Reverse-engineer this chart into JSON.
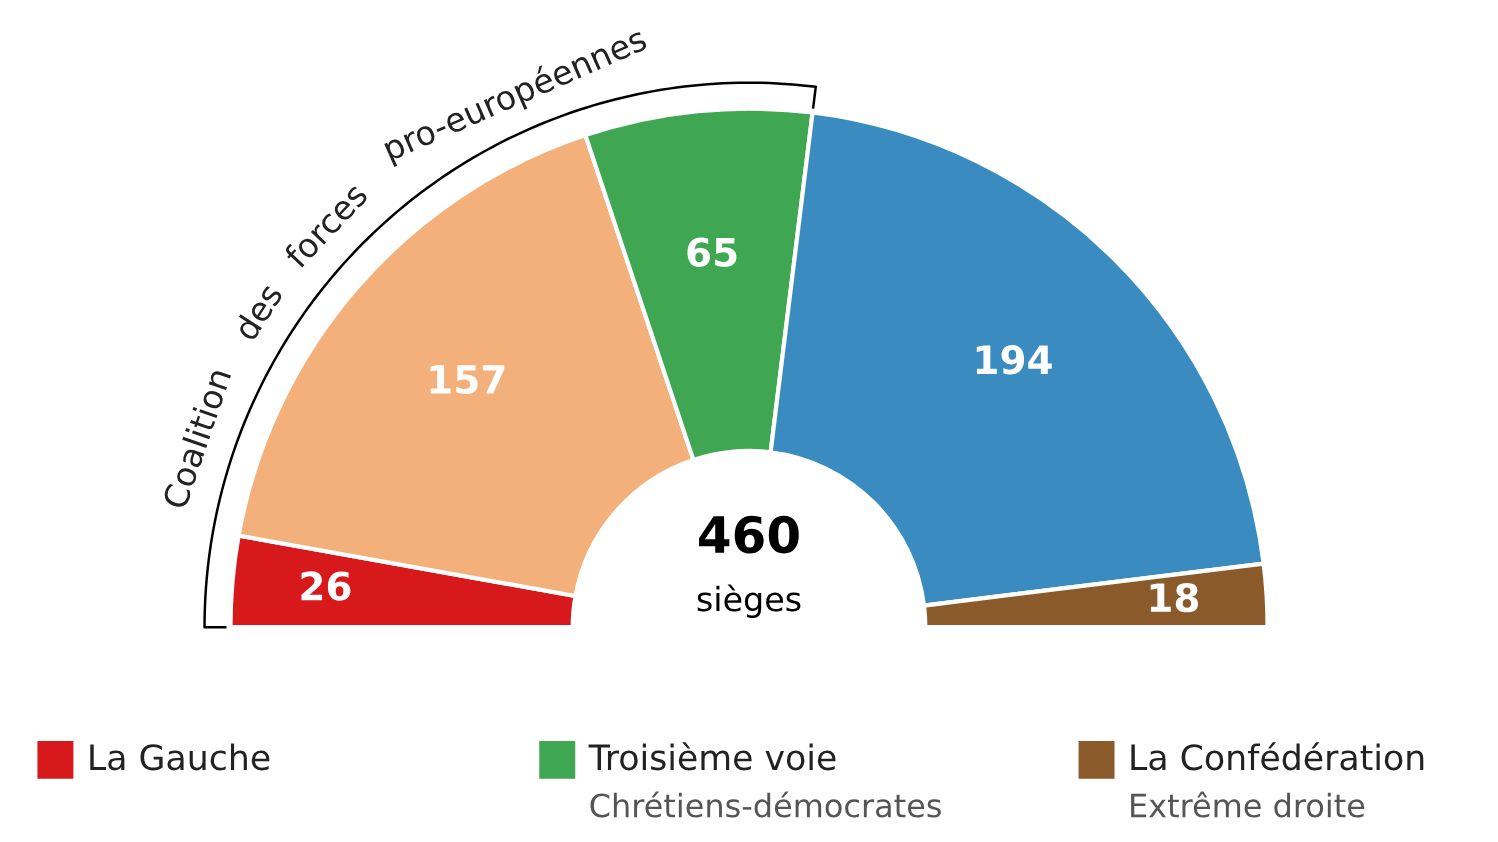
{
  "chart_data": {
    "type": "donut",
    "categories": [
      "La Gauche",
      null,
      "Troisième voie",
      null,
      "La Confédération"
    ],
    "values": [
      26,
      157,
      65,
      194,
      18
    ],
    "colors": [
      "#d7191c",
      "#f4b07a",
      "#3fa652",
      "#3a8bbf",
      "#8b5a2b"
    ],
    "data_labels": true,
    "legend": "bottom",
    "annotations": [
      "Coalition des forces pro-européennes",
      "460",
      "sièges",
      "Chrétiens-démocrates",
      "Extrême droite"
    ]
  }
}
